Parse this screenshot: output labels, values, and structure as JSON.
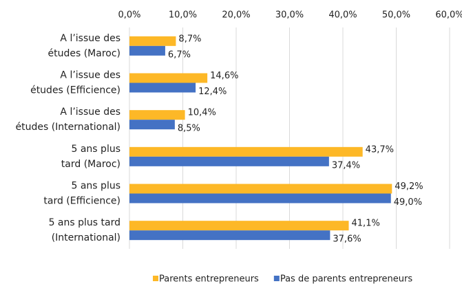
{
  "chart_data": {
    "type": "bar",
    "orientation": "horizontal",
    "categories": [
      [
        "A l’issue des",
        "études (Maroc)"
      ],
      [
        "A l’issue des",
        "études (Efficience)"
      ],
      [
        "A l’issue des",
        "études (International)"
      ],
      [
        "5 ans plus",
        "tard (Maroc)"
      ],
      [
        "5 ans plus",
        "tard (Efficience)"
      ],
      [
        "5 ans plus  tard",
        "(International)"
      ]
    ],
    "series": [
      {
        "name": "Parents entrepreneurs",
        "color": "#fdb827",
        "values": [
          8.7,
          14.6,
          10.4,
          43.7,
          49.2,
          41.1
        ],
        "value_labels": [
          "8,7%",
          "14,6%",
          "10,4%",
          "43,7%",
          "49,2%",
          "41,1%"
        ]
      },
      {
        "name": "Pas de parents entrepreneurs",
        "color": "#4472c4",
        "values": [
          6.7,
          12.4,
          8.5,
          37.4,
          49.0,
          37.6
        ],
        "value_labels": [
          "6,7%",
          "12,4%",
          "8,5%",
          "37,4%",
          "49,0%",
          "37,6%"
        ]
      }
    ],
    "xlim": [
      0,
      60
    ],
    "xticks": [
      {
        "value": 0,
        "label": "0,0%"
      },
      {
        "value": 10,
        "label": "10,0%"
      },
      {
        "value": 20,
        "label": "20,0%"
      },
      {
        "value": 30,
        "label": "30,0%"
      },
      {
        "value": 40,
        "label": "40,0%"
      },
      {
        "value": 50,
        "label": "50,0%"
      },
      {
        "value": 60,
        "label": "60,0%"
      }
    ],
    "grid": true,
    "legend": "bottom"
  }
}
